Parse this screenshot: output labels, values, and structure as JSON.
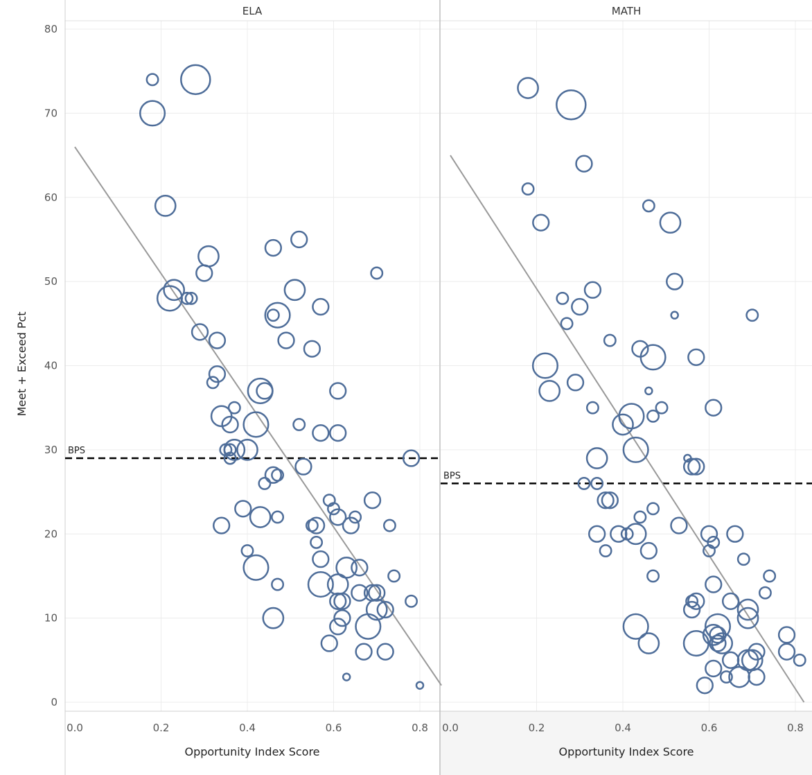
{
  "chart_data": {
    "type": "scatter",
    "ylabel": "Meet + Exceed Pct",
    "xlabel": "Opportunity Index Score",
    "ylim": [
      0,
      80
    ],
    "xlim": [
      0,
      0.85
    ],
    "y_ticks": [
      "0",
      "10",
      "20",
      "30",
      "40",
      "50",
      "60",
      "70",
      "80"
    ],
    "x_ticks": [
      "0.0",
      "0.2",
      "0.4",
      "0.6",
      "0.8"
    ],
    "grid": true,
    "marker_color": "#4e6d99",
    "trend_color": "#999999",
    "panels": [
      {
        "title": "ELA",
        "reference_line": {
          "label": "BPS",
          "value": 29
        },
        "trend_line": {
          "x": [
            0,
            0.85
          ],
          "y": [
            66,
            2
          ]
        },
        "points": [
          {
            "x": 0.18,
            "y": 74,
            "size": 1
          },
          {
            "x": 0.28,
            "y": 74,
            "size": 5
          },
          {
            "x": 0.18,
            "y": 70,
            "size": 4
          },
          {
            "x": 0.21,
            "y": 59,
            "size": 3
          },
          {
            "x": 0.31,
            "y": 53,
            "size": 3
          },
          {
            "x": 0.3,
            "y": 51,
            "size": 2
          },
          {
            "x": 0.23,
            "y": 49,
            "size": 3
          },
          {
            "x": 0.22,
            "y": 48,
            "size": 4
          },
          {
            "x": 0.26,
            "y": 48,
            "size": 1
          },
          {
            "x": 0.27,
            "y": 48,
            "size": 1
          },
          {
            "x": 0.29,
            "y": 44,
            "size": 2
          },
          {
            "x": 0.33,
            "y": 43,
            "size": 2
          },
          {
            "x": 0.46,
            "y": 54,
            "size": 2
          },
          {
            "x": 0.52,
            "y": 55,
            "size": 2
          },
          {
            "x": 0.51,
            "y": 49,
            "size": 3
          },
          {
            "x": 0.47,
            "y": 46,
            "size": 4
          },
          {
            "x": 0.46,
            "y": 46,
            "size": 1
          },
          {
            "x": 0.57,
            "y": 47,
            "size": 2
          },
          {
            "x": 0.49,
            "y": 43,
            "size": 2
          },
          {
            "x": 0.55,
            "y": 42,
            "size": 2
          },
          {
            "x": 0.7,
            "y": 51,
            "size": 1
          },
          {
            "x": 0.33,
            "y": 39,
            "size": 2
          },
          {
            "x": 0.32,
            "y": 38,
            "size": 1
          },
          {
            "x": 0.43,
            "y": 37,
            "size": 4
          },
          {
            "x": 0.44,
            "y": 37,
            "size": 2
          },
          {
            "x": 0.61,
            "y": 37,
            "size": 2
          },
          {
            "x": 0.37,
            "y": 35,
            "size": 1
          },
          {
            "x": 0.34,
            "y": 34,
            "size": 3
          },
          {
            "x": 0.36,
            "y": 33,
            "size": 2
          },
          {
            "x": 0.42,
            "y": 33,
            "size": 4
          },
          {
            "x": 0.52,
            "y": 33,
            "size": 1
          },
          {
            "x": 0.57,
            "y": 32,
            "size": 2
          },
          {
            "x": 0.61,
            "y": 32,
            "size": 2
          },
          {
            "x": 0.35,
            "y": 30,
            "size": 1
          },
          {
            "x": 0.36,
            "y": 30,
            "size": 1
          },
          {
            "x": 0.37,
            "y": 30,
            "size": 3
          },
          {
            "x": 0.4,
            "y": 30,
            "size": 3
          },
          {
            "x": 0.36,
            "y": 29,
            "size": 1
          },
          {
            "x": 0.53,
            "y": 28,
            "size": 2
          },
          {
            "x": 0.78,
            "y": 29,
            "size": 2
          },
          {
            "x": 0.44,
            "y": 26,
            "size": 1
          },
          {
            "x": 0.46,
            "y": 27,
            "size": 2
          },
          {
            "x": 0.47,
            "y": 27,
            "size": 1
          },
          {
            "x": 0.59,
            "y": 24,
            "size": 1
          },
          {
            "x": 0.6,
            "y": 23,
            "size": 1
          },
          {
            "x": 0.69,
            "y": 24,
            "size": 2
          },
          {
            "x": 0.39,
            "y": 23,
            "size": 2
          },
          {
            "x": 0.43,
            "y": 22,
            "size": 3
          },
          {
            "x": 0.47,
            "y": 22,
            "size": 1
          },
          {
            "x": 0.61,
            "y": 22,
            "size": 2
          },
          {
            "x": 0.65,
            "y": 22,
            "size": 1
          },
          {
            "x": 0.34,
            "y": 21,
            "size": 2
          },
          {
            "x": 0.56,
            "y": 21,
            "size": 2
          },
          {
            "x": 0.55,
            "y": 21,
            "size": 1
          },
          {
            "x": 0.64,
            "y": 21,
            "size": 2
          },
          {
            "x": 0.73,
            "y": 21,
            "size": 1
          },
          {
            "x": 0.4,
            "y": 18,
            "size": 1
          },
          {
            "x": 0.56,
            "y": 19,
            "size": 1
          },
          {
            "x": 0.57,
            "y": 17,
            "size": 2
          },
          {
            "x": 0.42,
            "y": 16,
            "size": 4
          },
          {
            "x": 0.63,
            "y": 16,
            "size": 3
          },
          {
            "x": 0.66,
            "y": 16,
            "size": 2
          },
          {
            "x": 0.74,
            "y": 15,
            "size": 1
          },
          {
            "x": 0.47,
            "y": 14,
            "size": 1
          },
          {
            "x": 0.57,
            "y": 14,
            "size": 4
          },
          {
            "x": 0.61,
            "y": 14,
            "size": 3
          },
          {
            "x": 0.66,
            "y": 13,
            "size": 2
          },
          {
            "x": 0.69,
            "y": 13,
            "size": 2
          },
          {
            "x": 0.7,
            "y": 13,
            "size": 2
          },
          {
            "x": 0.61,
            "y": 12,
            "size": 2
          },
          {
            "x": 0.62,
            "y": 12,
            "size": 2
          },
          {
            "x": 0.78,
            "y": 12,
            "size": 1
          },
          {
            "x": 0.7,
            "y": 11,
            "size": 3
          },
          {
            "x": 0.72,
            "y": 11,
            "size": 2
          },
          {
            "x": 0.46,
            "y": 10,
            "size": 3
          },
          {
            "x": 0.62,
            "y": 10,
            "size": 2
          },
          {
            "x": 0.61,
            "y": 9,
            "size": 2
          },
          {
            "x": 0.68,
            "y": 9,
            "size": 4
          },
          {
            "x": 0.59,
            "y": 7,
            "size": 2
          },
          {
            "x": 0.67,
            "y": 6,
            "size": 2
          },
          {
            "x": 0.72,
            "y": 6,
            "size": 2
          },
          {
            "x": 0.63,
            "y": 3,
            "size": 0
          },
          {
            "x": 0.8,
            "y": 2,
            "size": 0
          }
        ]
      },
      {
        "title": "MATH",
        "reference_line": {
          "label": "BPS",
          "value": 26
        },
        "trend_line": {
          "x": [
            0,
            0.82
          ],
          "y": [
            65,
            0
          ]
        },
        "points": [
          {
            "x": 0.18,
            "y": 73,
            "size": 3
          },
          {
            "x": 0.28,
            "y": 71,
            "size": 5
          },
          {
            "x": 0.31,
            "y": 64,
            "size": 2
          },
          {
            "x": 0.18,
            "y": 61,
            "size": 1
          },
          {
            "x": 0.21,
            "y": 57,
            "size": 2
          },
          {
            "x": 0.46,
            "y": 59,
            "size": 1
          },
          {
            "x": 0.51,
            "y": 57,
            "size": 3
          },
          {
            "x": 0.52,
            "y": 50,
            "size": 2
          },
          {
            "x": 0.33,
            "y": 49,
            "size": 2
          },
          {
            "x": 0.26,
            "y": 48,
            "size": 1
          },
          {
            "x": 0.3,
            "y": 47,
            "size": 2
          },
          {
            "x": 0.27,
            "y": 45,
            "size": 1
          },
          {
            "x": 0.52,
            "y": 46,
            "size": 0
          },
          {
            "x": 0.7,
            "y": 46,
            "size": 1
          },
          {
            "x": 0.37,
            "y": 43,
            "size": 1
          },
          {
            "x": 0.44,
            "y": 42,
            "size": 2
          },
          {
            "x": 0.47,
            "y": 41,
            "size": 4
          },
          {
            "x": 0.57,
            "y": 41,
            "size": 2
          },
          {
            "x": 0.22,
            "y": 40,
            "size": 4
          },
          {
            "x": 0.23,
            "y": 37,
            "size": 3
          },
          {
            "x": 0.29,
            "y": 38,
            "size": 2
          },
          {
            "x": 0.46,
            "y": 37,
            "size": 0
          },
          {
            "x": 0.33,
            "y": 35,
            "size": 1
          },
          {
            "x": 0.49,
            "y": 35,
            "size": 1
          },
          {
            "x": 0.61,
            "y": 35,
            "size": 2
          },
          {
            "x": 0.42,
            "y": 34,
            "size": 4
          },
          {
            "x": 0.47,
            "y": 34,
            "size": 1
          },
          {
            "x": 0.4,
            "y": 33,
            "size": 3
          },
          {
            "x": 0.43,
            "y": 30,
            "size": 4
          },
          {
            "x": 0.34,
            "y": 29,
            "size": 3
          },
          {
            "x": 0.55,
            "y": 29,
            "size": 0
          },
          {
            "x": 0.56,
            "y": 28,
            "size": 2
          },
          {
            "x": 0.57,
            "y": 28,
            "size": 2
          },
          {
            "x": 0.31,
            "y": 26,
            "size": 1
          },
          {
            "x": 0.34,
            "y": 26,
            "size": 1
          },
          {
            "x": 0.36,
            "y": 24,
            "size": 2
          },
          {
            "x": 0.37,
            "y": 24,
            "size": 2
          },
          {
            "x": 0.47,
            "y": 23,
            "size": 1
          },
          {
            "x": 0.44,
            "y": 22,
            "size": 1
          },
          {
            "x": 0.34,
            "y": 20,
            "size": 2
          },
          {
            "x": 0.39,
            "y": 20,
            "size": 2
          },
          {
            "x": 0.41,
            "y": 20,
            "size": 1
          },
          {
            "x": 0.43,
            "y": 20,
            "size": 3
          },
          {
            "x": 0.53,
            "y": 21,
            "size": 2
          },
          {
            "x": 0.6,
            "y": 20,
            "size": 2
          },
          {
            "x": 0.61,
            "y": 19,
            "size": 1
          },
          {
            "x": 0.66,
            "y": 20,
            "size": 2
          },
          {
            "x": 0.36,
            "y": 18,
            "size": 1
          },
          {
            "x": 0.46,
            "y": 18,
            "size": 2
          },
          {
            "x": 0.6,
            "y": 18,
            "size": 1
          },
          {
            "x": 0.68,
            "y": 17,
            "size": 1
          },
          {
            "x": 0.47,
            "y": 15,
            "size": 1
          },
          {
            "x": 0.74,
            "y": 15,
            "size": 1
          },
          {
            "x": 0.61,
            "y": 14,
            "size": 2
          },
          {
            "x": 0.73,
            "y": 13,
            "size": 1
          },
          {
            "x": 0.56,
            "y": 12,
            "size": 1
          },
          {
            "x": 0.57,
            "y": 12,
            "size": 2
          },
          {
            "x": 0.65,
            "y": 12,
            "size": 2
          },
          {
            "x": 0.56,
            "y": 11,
            "size": 2
          },
          {
            "x": 0.69,
            "y": 11,
            "size": 3
          },
          {
            "x": 0.69,
            "y": 10,
            "size": 3
          },
          {
            "x": 0.43,
            "y": 9,
            "size": 4
          },
          {
            "x": 0.62,
            "y": 9,
            "size": 4
          },
          {
            "x": 0.61,
            "y": 8,
            "size": 3
          },
          {
            "x": 0.62,
            "y": 8,
            "size": 2
          },
          {
            "x": 0.62,
            "y": 7,
            "size": 2
          },
          {
            "x": 0.63,
            "y": 7,
            "size": 3
          },
          {
            "x": 0.46,
            "y": 7,
            "size": 3
          },
          {
            "x": 0.57,
            "y": 7,
            "size": 4
          },
          {
            "x": 0.71,
            "y": 6,
            "size": 2
          },
          {
            "x": 0.78,
            "y": 8,
            "size": 2
          },
          {
            "x": 0.78,
            "y": 6,
            "size": 2
          },
          {
            "x": 0.81,
            "y": 5,
            "size": 1
          },
          {
            "x": 0.65,
            "y": 5,
            "size": 2
          },
          {
            "x": 0.69,
            "y": 5,
            "size": 3
          },
          {
            "x": 0.7,
            "y": 5,
            "size": 3
          },
          {
            "x": 0.61,
            "y": 4,
            "size": 2
          },
          {
            "x": 0.64,
            "y": 3,
            "size": 1
          },
          {
            "x": 0.67,
            "y": 3,
            "size": 3
          },
          {
            "x": 0.71,
            "y": 3,
            "size": 2
          },
          {
            "x": 0.59,
            "y": 2,
            "size": 2
          }
        ]
      }
    ]
  }
}
